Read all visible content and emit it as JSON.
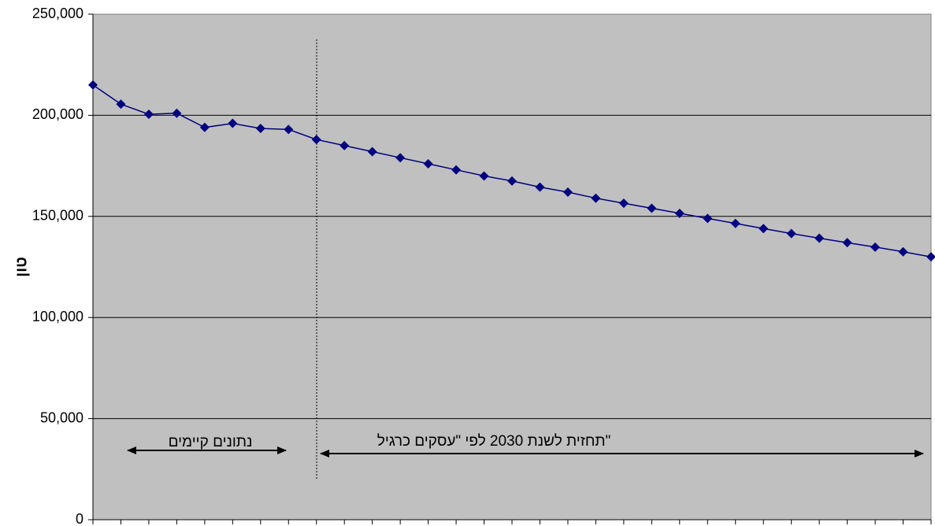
{
  "chart_data": {
    "type": "line",
    "title": "",
    "xlabel": "",
    "ylabel": "טון",
    "ylim": [
      0,
      250000
    ],
    "y_ticks": [
      "0",
      "50,000",
      "100,000",
      "150,000",
      "200,000",
      "250,000"
    ],
    "grid": true,
    "series_color": "#000080",
    "plot_background": "#C0C0C0",
    "series": [
      {
        "values": [
          215000,
          205500,
          200500,
          201000,
          194000,
          196000,
          193500,
          193000,
          188000,
          185000,
          182000,
          179000,
          176000,
          173000,
          170000,
          167500,
          164500,
          162000,
          159000,
          156500,
          154000,
          151500,
          149000,
          146500,
          144000,
          141500,
          139200,
          137000,
          134800,
          132500,
          130000
        ]
      }
    ],
    "annotations": {
      "existing_data": "נתונים קיימים",
      "forecast": "תחזית לשנת 2030 לפי \"עסקים כרגיל\""
    }
  }
}
